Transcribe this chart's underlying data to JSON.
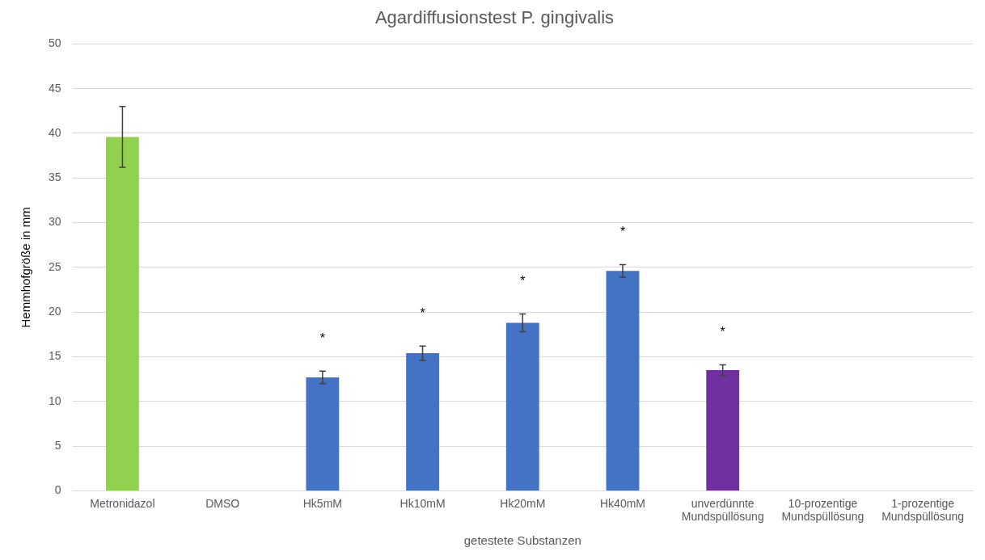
{
  "chart_data": {
    "type": "bar",
    "title": "Agardiffusionstest P. gingivalis",
    "xlabel": "getestete Substanzen",
    "ylabel": "Hemmhofgröße in mm",
    "categories": [
      "Metronidazol",
      "DMSO",
      "Hk5mM",
      "Hk10mM",
      "Hk20mM",
      "Hk40mM",
      "unverdünnte Mundspüllösung",
      "10-prozentige Mundspüllösung",
      "1-prozentige Mundspüllösung"
    ],
    "values": [
      39.6,
      0,
      12.7,
      15.4,
      18.8,
      24.6,
      13.5,
      0,
      0
    ],
    "errors": [
      3.4,
      null,
      0.7,
      0.8,
      1.0,
      0.7,
      0.6,
      null,
      null
    ],
    "colors": [
      "#92d050",
      "#4472c4",
      "#4472c4",
      "#4472c4",
      "#4472c4",
      "#4472c4",
      "#7030a0",
      "#4472c4",
      "#4472c4"
    ],
    "ylim": [
      0,
      50
    ],
    "yticks": [
      0,
      5,
      10,
      15,
      20,
      25,
      30,
      35,
      40,
      45,
      50
    ],
    "grid": "y",
    "legend": false,
    "annotations": [
      {
        "text": "*",
        "x": "Hk5mM",
        "y": 12.7
      },
      {
        "text": "*",
        "x": "Hk10mM",
        "y": 15.4
      },
      {
        "text": "*",
        "x": "Hk20mM",
        "y": 18.8
      },
      {
        "text": "*",
        "x": "Hk40mM",
        "y": 24.6
      },
      {
        "text": "*",
        "x": "unverdünnte Mundspüllösung",
        "y": 13.5
      }
    ]
  }
}
